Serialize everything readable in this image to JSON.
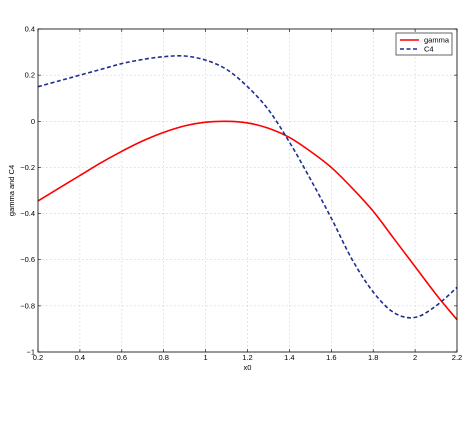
{
  "chart_data": {
    "type": "line",
    "title": "",
    "xlabel": "x0",
    "ylabel": "gamma and C4",
    "xlim": [
      0.2,
      2.2
    ],
    "ylim": [
      -1,
      0.4
    ],
    "xticks": [
      0.2,
      0.4,
      0.6,
      0.8,
      1,
      1.2,
      1.4,
      1.6,
      1.8,
      2,
      2.2
    ],
    "xtick_labels": [
      "0.2",
      "0.4",
      "0.6",
      "0.8",
      "1",
      "1.2",
      "1.4",
      "1.6",
      "1.8",
      "2",
      "2.2"
    ],
    "yticks": [
      -1,
      -0.8,
      -0.6,
      -0.4,
      -0.2,
      0,
      0.2,
      0.4
    ],
    "ytick_labels": [
      "−1",
      "−0.8",
      "−0.6",
      "−0.4",
      "−0.2",
      "0",
      "0.2",
      "0.4"
    ],
    "grid": true,
    "legend_position": "top-right",
    "series": [
      {
        "name": "gamma",
        "color": "#ff0000",
        "style": "solid",
        "x": [
          0.2,
          0.3,
          0.4,
          0.5,
          0.6,
          0.7,
          0.8,
          0.9,
          1.0,
          1.1,
          1.2,
          1.3,
          1.4,
          1.5,
          1.6,
          1.7,
          1.8,
          1.9,
          2.0,
          2.1,
          2.2
        ],
        "y": [
          -0.345,
          -0.29,
          -0.235,
          -0.18,
          -0.13,
          -0.085,
          -0.048,
          -0.02,
          -0.004,
          0.0,
          -0.007,
          -0.03,
          -0.07,
          -0.13,
          -0.2,
          -0.29,
          -0.39,
          -0.51,
          -0.63,
          -0.75,
          -0.86
        ]
      },
      {
        "name": "C4",
        "color": "#1f2f8f",
        "style": "dashed",
        "x": [
          0.2,
          0.3,
          0.4,
          0.5,
          0.6,
          0.7,
          0.8,
          0.9,
          1.0,
          1.1,
          1.2,
          1.3,
          1.4,
          1.5,
          1.6,
          1.7,
          1.8,
          1.9,
          2.0,
          2.1,
          2.2
        ],
        "y": [
          0.15,
          0.175,
          0.2,
          0.225,
          0.25,
          0.268,
          0.28,
          0.283,
          0.265,
          0.225,
          0.15,
          0.05,
          -0.09,
          -0.25,
          -0.42,
          -0.6,
          -0.74,
          -0.83,
          -0.85,
          -0.8,
          -0.72
        ]
      }
    ]
  }
}
